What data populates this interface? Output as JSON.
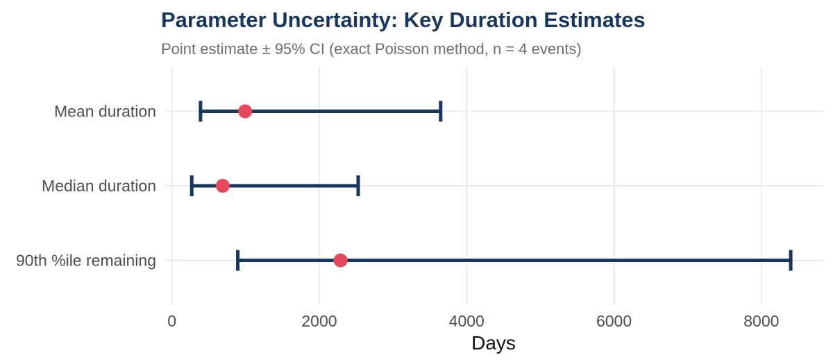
{
  "header": {
    "title": "Parameter Uncertainty: Key Duration Estimates",
    "subtitle": "Point estimate ± 95% CI (exact Poisson method, n = 4 events)"
  },
  "colors": {
    "title_navy": "#17375E",
    "subtitle_gray": "#6E6E6E",
    "errorbar_navy": "#17375E",
    "point_red": "#E5475D",
    "gridline_gray": "#EBEBEB",
    "axis_text_gray": "#4D4D4D",
    "axis_title_black": "#111111"
  },
  "chart_data": {
    "type": "scatter",
    "variant": "horizontal-point-estimates-with-95ci-errorbars",
    "title": "Parameter Uncertainty: Key Duration Estimates",
    "subtitle": "Point estimate ± 95% CI (exact Poisson method, n = 4 events)",
    "xlabel": "Days",
    "ylabel": "",
    "categories": [
      "Mean duration",
      "Median duration",
      "90th %ile remaining"
    ],
    "series": [
      {
        "name": "point_estimate_days",
        "values": [
          994,
          689,
          2288
        ]
      },
      {
        "name": "ci95_lower_days",
        "values": [
          388,
          269,
          894
        ]
      },
      {
        "name": "ci95_upper_days",
        "values": [
          3647,
          2528,
          8398
        ]
      }
    ],
    "x_ticks": [
      0,
      2000,
      4000,
      6000,
      8000
    ],
    "x_tick_labels": [
      "0",
      "2000",
      "4000",
      "6000",
      "8000"
    ],
    "xlim": [
      -110,
      8840
    ],
    "grid": true,
    "legend": "none"
  }
}
